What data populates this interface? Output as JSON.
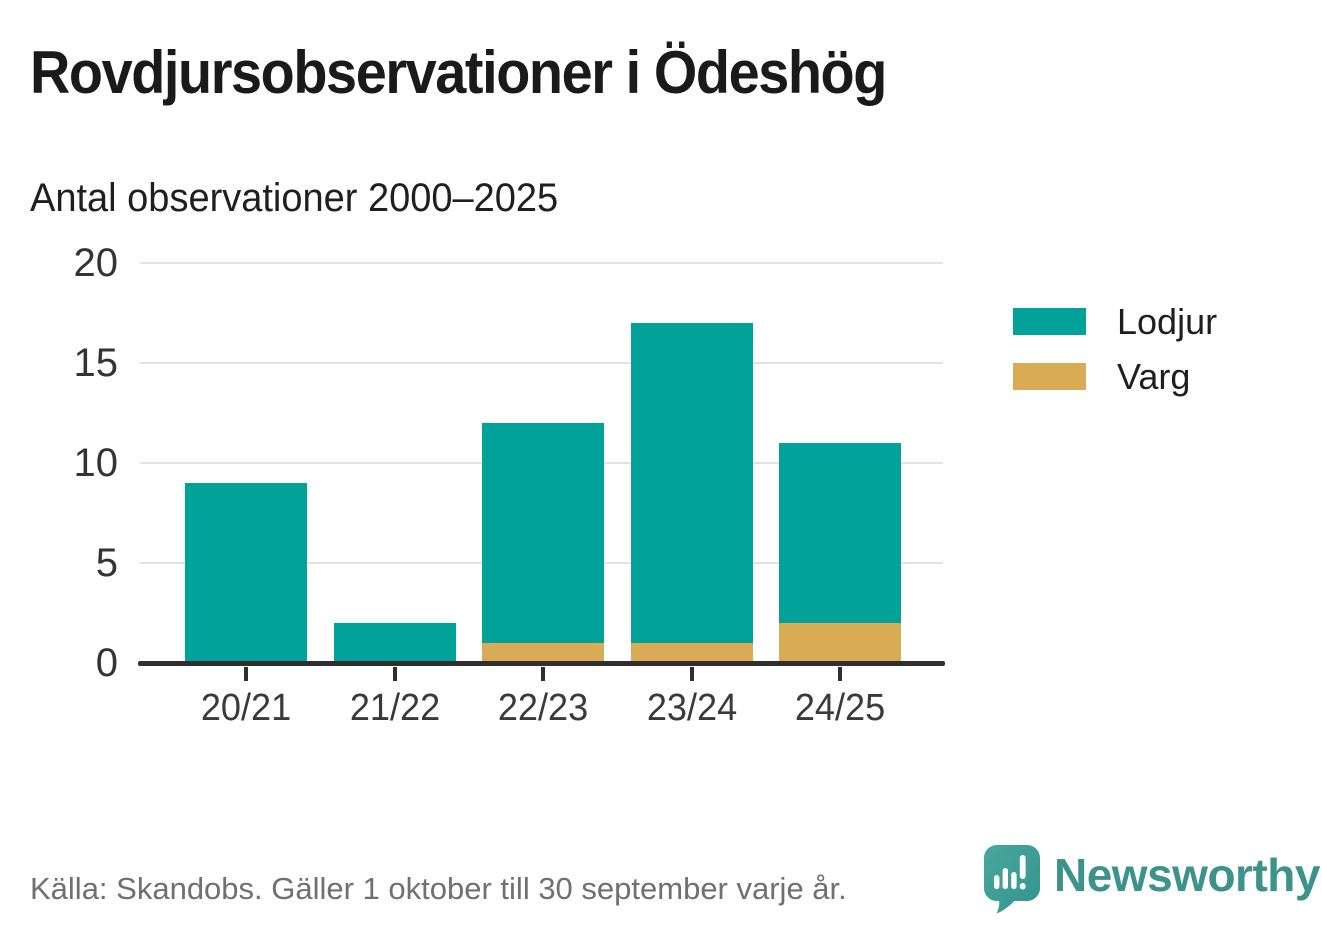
{
  "header": {
    "title": "Rovdjursobservationer i Ödeshög",
    "subtitle": "Antal observationer 2000–2025"
  },
  "chart_data": {
    "type": "bar",
    "stacked": true,
    "categories": [
      "20/21",
      "21/22",
      "22/23",
      "23/24",
      "24/25"
    ],
    "series": [
      {
        "name": "Lodjur",
        "color": "#00a29a",
        "values": [
          9,
          2,
          11,
          16,
          9
        ]
      },
      {
        "name": "Varg",
        "color": "#d9ab55",
        "values": [
          0,
          0,
          1,
          1,
          2
        ]
      }
    ],
    "stack_totals": [
      9,
      2,
      12,
      17,
      11
    ],
    "ylim": [
      0,
      20
    ],
    "yticks": [
      0,
      5,
      10,
      15,
      20
    ],
    "xlabel": "",
    "ylabel": "",
    "grid": "horizontal",
    "legend_position": "right"
  },
  "footer": {
    "source": "Källa: Skandobs. Gäller 1 oktober till 30 september varje år."
  },
  "brand": {
    "name": "Newsworthy"
  },
  "colors": {
    "lodjur": "#00a29a",
    "varg": "#d9ab55",
    "axis": "#2f2f2f",
    "grid": "#e2e2e2",
    "brand_teal": "#3d938b"
  }
}
